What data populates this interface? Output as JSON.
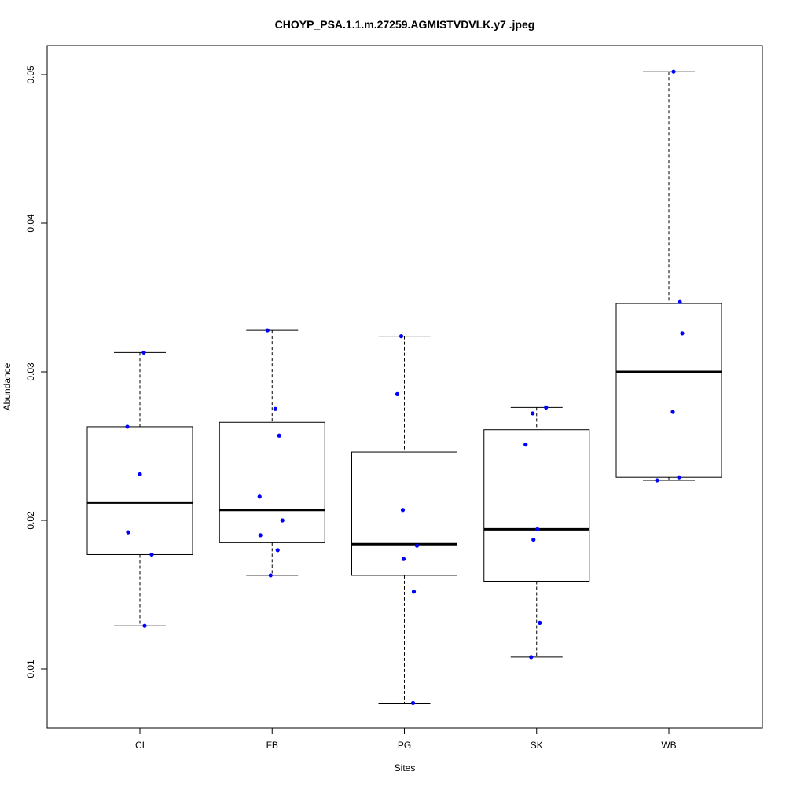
{
  "chart_data": {
    "type": "box",
    "title": "CHOYP_PSA.1.1.m.27259.AGMISTVDVLK.y7 .jpeg",
    "xlabel": "Sites",
    "ylabel": "Abundance",
    "ylim": [
      0.0061,
      0.052
    ],
    "yticks": [
      0.01,
      0.02,
      0.03,
      0.04,
      0.05
    ],
    "ytick_labels": [
      "0.01",
      "0.02",
      "0.03",
      "0.04",
      "0.05"
    ],
    "categories": [
      "CI",
      "FB",
      "PG",
      "SK",
      "WB"
    ],
    "boxes": [
      {
        "name": "CI",
        "whisker_low": 0.0129,
        "q1": 0.0177,
        "median": 0.0212,
        "q3": 0.0263,
        "whisker_high": 0.0313,
        "points": [
          0.0313,
          0.0263,
          0.0231,
          0.0192,
          0.0177,
          0.0129
        ]
      },
      {
        "name": "FB",
        "whisker_low": 0.0163,
        "q1": 0.0185,
        "median": 0.0207,
        "q3": 0.0266,
        "whisker_high": 0.0328,
        "points": [
          0.0328,
          0.0275,
          0.0257,
          0.0216,
          0.02,
          0.019,
          0.018,
          0.0163
        ]
      },
      {
        "name": "PG",
        "whisker_low": 0.0077,
        "q1": 0.0163,
        "median": 0.0184,
        "q3": 0.0246,
        "whisker_high": 0.0324,
        "points": [
          0.0324,
          0.0285,
          0.0207,
          0.0183,
          0.0174,
          0.0152,
          0.0077
        ]
      },
      {
        "name": "SK",
        "whisker_low": 0.0108,
        "q1": 0.0159,
        "median": 0.0194,
        "q3": 0.0261,
        "whisker_high": 0.0276,
        "points": [
          0.0276,
          0.0272,
          0.0251,
          0.0194,
          0.0187,
          0.0131,
          0.0108
        ]
      },
      {
        "name": "WB",
        "whisker_low": 0.0227,
        "q1": 0.0229,
        "median": 0.03,
        "q3": 0.0346,
        "whisker_high": 0.0502,
        "points": [
          0.0502,
          0.0347,
          0.0326,
          0.0273,
          0.0229,
          0.0227
        ]
      }
    ],
    "point_color": "#0000ff",
    "grid": false,
    "legend": "none"
  }
}
